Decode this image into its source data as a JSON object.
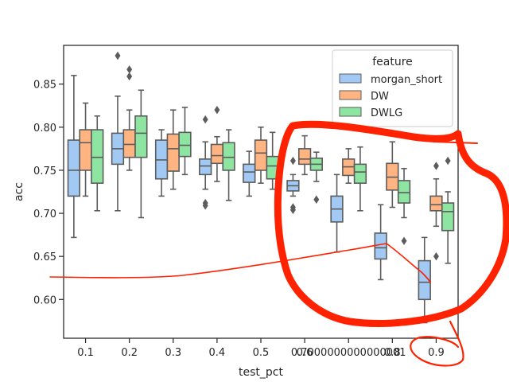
{
  "chart_data": {
    "type": "box",
    "xlabel": "test_pct",
    "ylabel": "acc",
    "ylim": [
      0.555,
      0.895
    ],
    "y_ticks": [
      "0.60",
      "0.65",
      "0.70",
      "0.75",
      "0.80",
      "0.85"
    ],
    "y_tick_values": [
      0.6,
      0.65,
      0.7,
      0.75,
      0.8,
      0.85
    ],
    "categories": [
      "0.1",
      "0.2",
      "0.3",
      "0.4",
      "0.5",
      "0.6",
      "0.7000000000000001",
      "0.8",
      "0.9"
    ],
    "legend": {
      "title": "feature",
      "placement": "upper right"
    },
    "grid": false,
    "series": [
      {
        "name": "morgan_short",
        "color": "#a1c9f4",
        "boxes": [
          {
            "whislo": 0.672,
            "q1": 0.72,
            "med": 0.75,
            "q3": 0.785,
            "whishi": 0.86,
            "fliers": []
          },
          {
            "whislo": 0.703,
            "q1": 0.757,
            "med": 0.775,
            "q3": 0.793,
            "whishi": 0.836,
            "fliers": [
              0.883
            ]
          },
          {
            "whislo": 0.72,
            "q1": 0.74,
            "med": 0.762,
            "q3": 0.785,
            "whishi": 0.797,
            "fliers": []
          },
          {
            "whislo": 0.728,
            "q1": 0.745,
            "med": 0.755,
            "q3": 0.763,
            "whishi": 0.783,
            "fliers": [
              0.809,
              0.712,
              0.709
            ]
          },
          {
            "whislo": 0.72,
            "q1": 0.736,
            "med": 0.748,
            "q3": 0.757,
            "whishi": 0.772,
            "fliers": []
          },
          {
            "whislo": 0.72,
            "q1": 0.726,
            "med": 0.732,
            "q3": 0.738,
            "whishi": 0.745,
            "fliers": [
              0.761,
              0.707,
              0.704
            ]
          },
          {
            "whislo": 0.655,
            "q1": 0.69,
            "med": 0.705,
            "q3": 0.72,
            "whishi": 0.745,
            "fliers": []
          },
          {
            "whislo": 0.623,
            "q1": 0.647,
            "med": 0.66,
            "q3": 0.677,
            "whishi": 0.71,
            "fliers": []
          },
          {
            "whislo": 0.573,
            "q1": 0.6,
            "med": 0.62,
            "q3": 0.645,
            "whishi": 0.672,
            "fliers": []
          }
        ]
      },
      {
        "name": "DW",
        "color": "#ffb482",
        "boxes": [
          {
            "whislo": 0.72,
            "q1": 0.75,
            "med": 0.782,
            "q3": 0.797,
            "whishi": 0.828,
            "fliers": []
          },
          {
            "whislo": 0.75,
            "q1": 0.765,
            "med": 0.78,
            "q3": 0.797,
            "whishi": 0.82,
            "fliers": [
              0.867,
              0.859
            ]
          },
          {
            "whislo": 0.728,
            "q1": 0.749,
            "med": 0.775,
            "q3": 0.792,
            "whishi": 0.82,
            "fliers": []
          },
          {
            "whislo": 0.737,
            "q1": 0.758,
            "med": 0.767,
            "q3": 0.78,
            "whishi": 0.789,
            "fliers": [
              0.82
            ]
          },
          {
            "whislo": 0.735,
            "q1": 0.75,
            "med": 0.77,
            "q3": 0.785,
            "whishi": 0.8,
            "fliers": []
          },
          {
            "whislo": 0.745,
            "q1": 0.757,
            "med": 0.763,
            "q3": 0.775,
            "whishi": 0.79,
            "fliers": []
          },
          {
            "whislo": 0.735,
            "q1": 0.744,
            "med": 0.754,
            "q3": 0.763,
            "whishi": 0.775,
            "fliers": []
          },
          {
            "whislo": 0.707,
            "q1": 0.727,
            "med": 0.742,
            "q3": 0.758,
            "whishi": 0.783,
            "fliers": []
          },
          {
            "whislo": 0.685,
            "q1": 0.703,
            "med": 0.71,
            "q3": 0.72,
            "whishi": 0.74,
            "fliers": [
              0.755,
              0.65
            ]
          }
        ]
      },
      {
        "name": "DWLG",
        "color": "#8de5a1",
        "boxes": [
          {
            "whislo": 0.703,
            "q1": 0.735,
            "med": 0.765,
            "q3": 0.797,
            "whishi": 0.813,
            "fliers": []
          },
          {
            "whislo": 0.695,
            "q1": 0.765,
            "med": 0.793,
            "q3": 0.813,
            "whishi": 0.843,
            "fliers": []
          },
          {
            "whislo": 0.745,
            "q1": 0.766,
            "med": 0.779,
            "q3": 0.794,
            "whishi": 0.823,
            "fliers": []
          },
          {
            "whislo": 0.715,
            "q1": 0.75,
            "med": 0.765,
            "q3": 0.782,
            "whishi": 0.797,
            "fliers": []
          },
          {
            "whislo": 0.728,
            "q1": 0.74,
            "med": 0.755,
            "q3": 0.766,
            "whishi": 0.794,
            "fliers": []
          },
          {
            "whislo": 0.737,
            "q1": 0.75,
            "med": 0.757,
            "q3": 0.764,
            "whishi": 0.771,
            "fliers": [
              0.716
            ]
          },
          {
            "whislo": 0.703,
            "q1": 0.735,
            "med": 0.748,
            "q3": 0.757,
            "whishi": 0.777,
            "fliers": []
          },
          {
            "whislo": 0.695,
            "q1": 0.712,
            "med": 0.724,
            "q3": 0.738,
            "whishi": 0.752,
            "fliers": [
              0.668
            ]
          },
          {
            "whislo": 0.642,
            "q1": 0.68,
            "med": 0.702,
            "q3": 0.712,
            "whishi": 0.725,
            "fliers": [
              0.761
            ]
          }
        ]
      }
    ],
    "annotations": {
      "color": "#ff2200",
      "marks": [
        "hand-drawn circle around the 0.6–0.9 groups",
        "hand-drawn line through morgan_short medians",
        "hand-drawn circle around the 0.9 tick label"
      ]
    }
  }
}
